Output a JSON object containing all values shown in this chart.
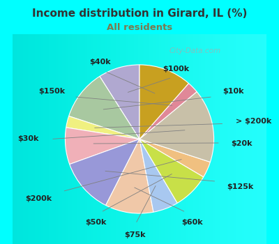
{
  "title": "Income distribution in Girard, IL (%)",
  "subtitle": "All residents",
  "title_color": "#333333",
  "subtitle_color": "#7a7a50",
  "background_color": "#00ffff",
  "chart_bg_color": "#d8ede0",
  "labels": [
    "$100k",
    "$10k",
    "> $200k",
    "$20k",
    "$125k",
    "$60k",
    "$75k",
    "$50k",
    "$200k",
    "$30k",
    "$150k",
    "$40k"
  ],
  "sizes": [
    9.0,
    11.0,
    2.5,
    8.0,
    12.0,
    10.5,
    5.5,
    8.0,
    3.5,
    16.0,
    2.5,
    11.5
  ],
  "colors": [
    "#b0a8d0",
    "#a8c8a0",
    "#f0f080",
    "#f0b0b8",
    "#9898d8",
    "#f0c8a8",
    "#a8c8f0",
    "#c8e048",
    "#f0c080",
    "#c8c0a8",
    "#e08898",
    "#c8a020"
  ],
  "startangle": 90,
  "label_fontsize": 8,
  "watermark": "City-Data.com"
}
